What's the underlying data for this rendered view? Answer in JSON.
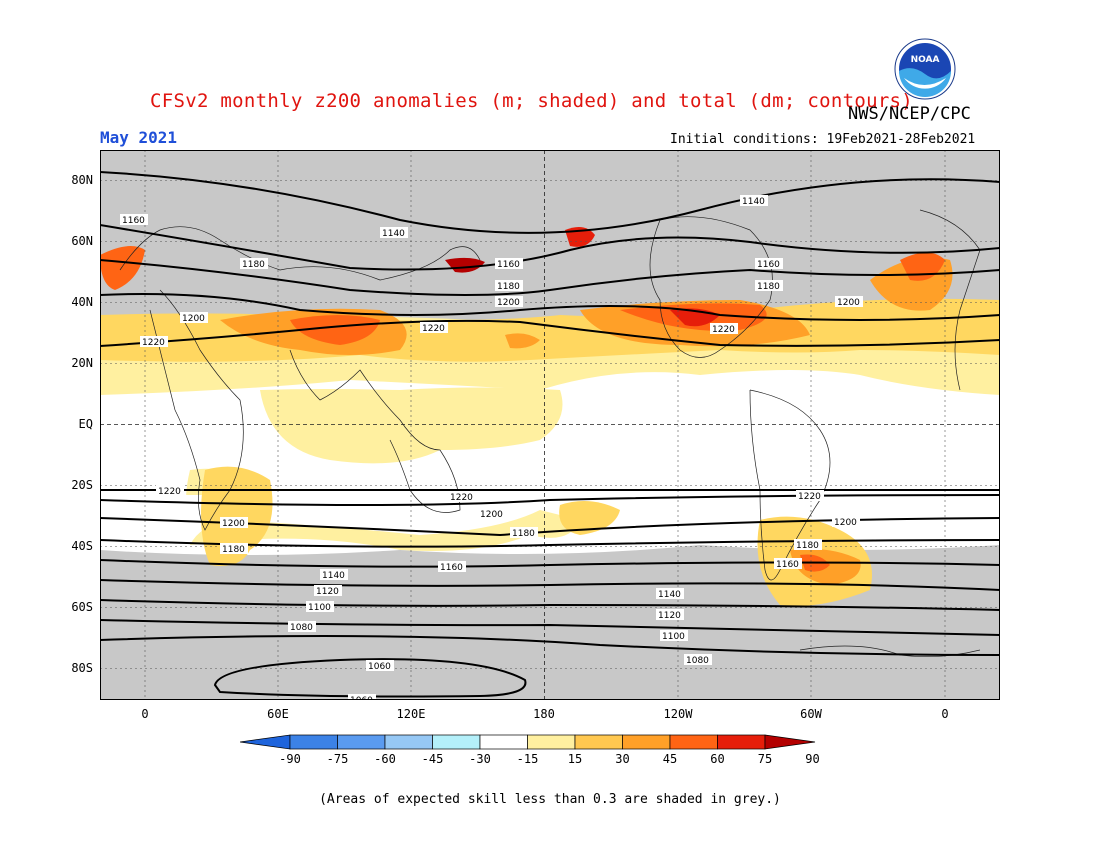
{
  "title": "CFSv2 monthly z200 anomalies (m; shaded) and total (dm; contours)",
  "org": "NWS/NCEP/CPC",
  "logo_text": "NOAA",
  "valid_month": "May 2021",
  "initial_conditions": "Initial conditions: 19Feb2021-28Feb2021",
  "lat_labels": [
    "80N",
    "60N",
    "40N",
    "20N",
    "EQ",
    "20S",
    "40S",
    "60S",
    "80S"
  ],
  "lon_labels": [
    "0",
    "60E",
    "120E",
    "180",
    "120W",
    "60W",
    "0"
  ],
  "colorbar": {
    "labels": [
      "-90",
      "-75",
      "-60",
      "-45",
      "-30",
      "-15",
      "15",
      "30",
      "45",
      "60",
      "75",
      "90"
    ],
    "colors": [
      "#1e64dc",
      "#3c82e6",
      "#5a9bf0",
      "#96c8f5",
      "#b4f0fa",
      "#ffffff",
      "#fff0a0",
      "#ffc850",
      "#ffa028",
      "#ff6414",
      "#e61e0a",
      "#b40000"
    ]
  },
  "contour_labels": [
    "1160",
    "1140",
    "1180",
    "1200",
    "1220",
    "1220",
    "1200",
    "1180",
    "1160",
    "1140",
    "1120",
    "1100",
    "1080",
    "1060",
    "1060"
  ],
  "colors": {
    "title": "#e0140f",
    "month": "#1f4fd8",
    "skill_grey": "#c8c8c8",
    "light_yellow": "#fff0a0",
    "yellow": "#ffd760",
    "orange": "#ffa028",
    "red_orange": "#ff6414",
    "red": "#e61e0a",
    "dark_red": "#b40000"
  },
  "footnote": "(Areas of expected skill less than 0.3 are shaded in grey.)"
}
